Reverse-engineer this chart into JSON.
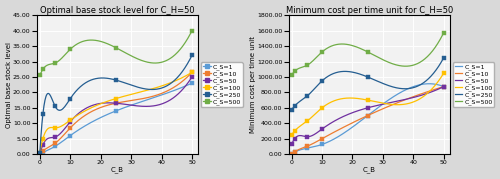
{
  "cb_values": [
    0,
    1,
    5,
    10,
    25,
    50
  ],
  "title_left": "Optimal base stock level for C_H=50",
  "title_right": "Minimum cost per time unit for C_H=50",
  "ylabel_left": "Optimal base stock level",
  "ylabel_right": "Minimum cost per time unit",
  "xlabel": "C_B",
  "legend_labels": [
    "C_S=1",
    "C_S=10",
    "C_S=50",
    "C_S=100",
    "C_S=250",
    "C_S=500"
  ],
  "line_colors": [
    "#5B9BD5",
    "#ED7D31",
    "#7030A0",
    "#FFC000",
    "#255E91",
    "#70AD47"
  ],
  "marker": "s",
  "left_y": [
    [
      0.0,
      0.5,
      2.5,
      6.0,
      14.0,
      23.0
    ],
    [
      0.0,
      1.0,
      3.5,
      8.5,
      16.5,
      26.5
    ],
    [
      0.0,
      3.0,
      5.5,
      10.5,
      16.5,
      25.0
    ],
    [
      0.5,
      5.0,
      8.5,
      11.0,
      18.0,
      26.5
    ],
    [
      0.5,
      13.0,
      15.5,
      18.0,
      24.0,
      32.0
    ],
    [
      25.5,
      27.5,
      29.5,
      34.0,
      34.5,
      40.0
    ]
  ],
  "right_y": [
    [
      0.0,
      25.0,
      75.0,
      125.0,
      500.0,
      875.0
    ],
    [
      0.0,
      30.0,
      100.0,
      200.0,
      500.0,
      875.0
    ],
    [
      125.0,
      200.0,
      225.0,
      325.0,
      600.0,
      875.0
    ],
    [
      250.0,
      300.0,
      425.0,
      600.0,
      700.0,
      1050.0
    ],
    [
      575.0,
      625.0,
      750.0,
      950.0,
      1000.0,
      1250.0
    ],
    [
      1025.0,
      1075.0,
      1150.0,
      1325.0,
      1325.0,
      1575.0
    ]
  ],
  "left_ylim": [
    0,
    45
  ],
  "left_yticks": [
    0.0,
    5.0,
    10.0,
    15.0,
    20.0,
    25.0,
    30.0,
    35.0,
    40.0,
    45.0
  ],
  "right_ylim": [
    0,
    1800
  ],
  "right_yticks": [
    0.0,
    200.0,
    400.0,
    600.0,
    800.0,
    1000.0,
    1200.0,
    1400.0,
    1600.0,
    1800.0
  ],
  "xticks": [
    0,
    10,
    20,
    30,
    40,
    50
  ],
  "bg_color": "#D9D9D9",
  "plot_bg": "#F2F2F2",
  "grid_color": "white",
  "title_fontsize": 6.0,
  "label_fontsize": 5.0,
  "tick_fontsize": 4.5,
  "legend_fontsize": 4.5,
  "linewidth": 0.9,
  "markersize": 2.5
}
